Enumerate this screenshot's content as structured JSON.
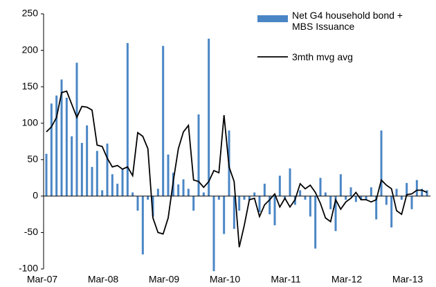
{
  "chart_data": {
    "type": "bar+line",
    "categories": [
      "Mar-07",
      null,
      null,
      null,
      null,
      null,
      null,
      null,
      null,
      null,
      null,
      null,
      "Mar-08",
      null,
      null,
      null,
      null,
      null,
      null,
      null,
      null,
      null,
      null,
      null,
      "Mar-09",
      null,
      null,
      null,
      null,
      null,
      null,
      null,
      null,
      null,
      null,
      null,
      "Mar-10",
      null,
      null,
      null,
      null,
      null,
      null,
      null,
      null,
      null,
      null,
      null,
      "Mar-11",
      null,
      null,
      null,
      null,
      null,
      null,
      null,
      null,
      null,
      null,
      null,
      "Mar-12",
      null,
      null,
      null,
      null,
      null,
      null,
      null,
      null,
      null,
      null,
      null,
      "Mar-13",
      null,
      null,
      null
    ],
    "series": [
      {
        "name": "Net G4 household bond + MBS Issuance",
        "type": "bar",
        "color": "#4a86c5",
        "values": [
          58,
          127,
          138,
          160,
          135,
          82,
          183,
          73,
          97,
          40,
          62,
          8,
          72,
          30,
          17,
          37,
          210,
          5,
          -20,
          -80,
          -5,
          -28,
          10,
          206,
          57,
          32,
          16,
          23,
          10,
          -20,
          112,
          5,
          216,
          -103,
          -5,
          -52,
          90,
          -45,
          -20,
          -5,
          -5,
          5,
          -22,
          17,
          -25,
          -40,
          28,
          -5,
          38,
          -12,
          8,
          -5,
          -28,
          -72,
          25,
          5,
          -18,
          -48,
          30,
          -5,
          12,
          -8,
          -5,
          -5,
          12,
          -32,
          90,
          -12,
          -43,
          10,
          -5,
          18,
          -18,
          22,
          10,
          8
        ]
      },
      {
        "name": "3mth mvg avg",
        "type": "line",
        "color": "#000000",
        "values": [
          88,
          95,
          108,
          142,
          144,
          126,
          108,
          123,
          122,
          118,
          70,
          68,
          52,
          40,
          42,
          37,
          40,
          28,
          87,
          82,
          65,
          -30,
          -50,
          -52,
          -30,
          20,
          65,
          88,
          97,
          22,
          20,
          12,
          20,
          35,
          32,
          111,
          40,
          20,
          -70,
          -40,
          -5,
          -3,
          -28,
          -12,
          -5,
          3,
          -15,
          -3,
          -15,
          -5,
          17,
          10,
          15,
          5,
          -10,
          -30,
          -35,
          -5,
          -18,
          -8,
          -3,
          5,
          -5,
          -5,
          -8,
          -5,
          22,
          15,
          10,
          -20,
          -25,
          2,
          3,
          8,
          8,
          5
        ]
      }
    ],
    "ylim": [
      -100,
      250
    ],
    "yticks": [
      -100,
      -50,
      0,
      50,
      100,
      150,
      200,
      250
    ],
    "grid": false,
    "legend": "top-right"
  }
}
